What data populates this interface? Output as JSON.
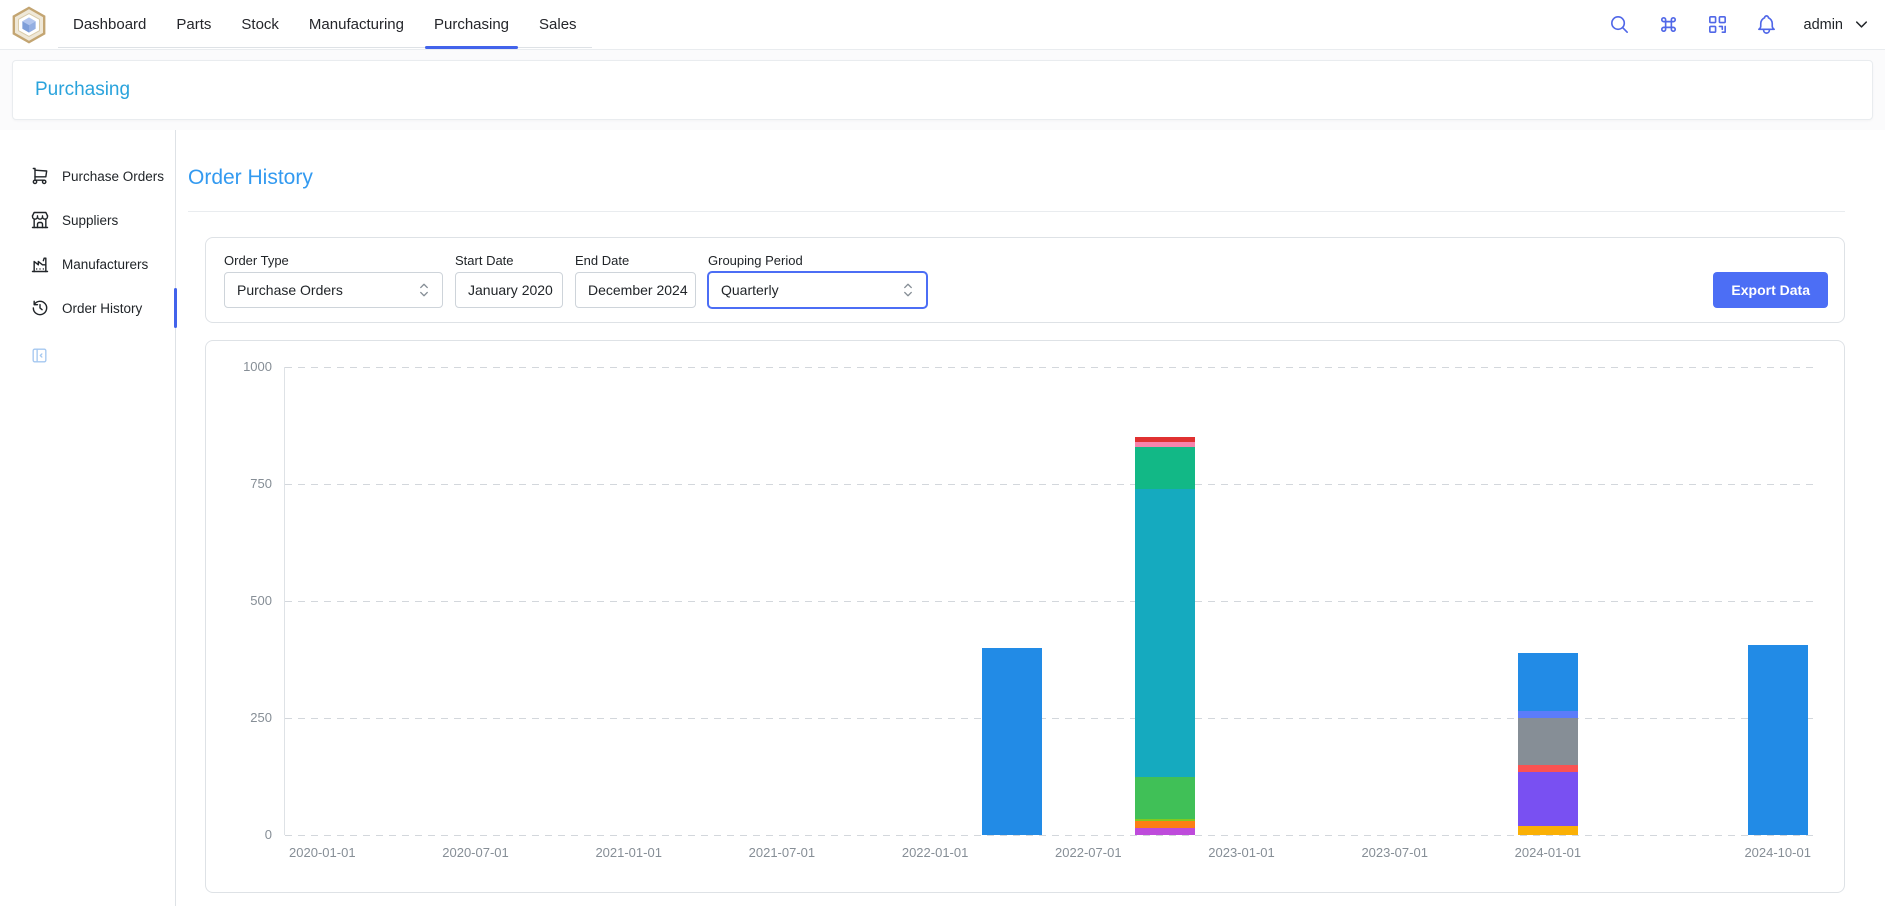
{
  "header": {
    "tabs": [
      {
        "label": "Dashboard",
        "active": false
      },
      {
        "label": "Parts",
        "active": false
      },
      {
        "label": "Stock",
        "active": false
      },
      {
        "label": "Manufacturing",
        "active": false
      },
      {
        "label": "Purchasing",
        "active": true
      },
      {
        "label": "Sales",
        "active": false
      }
    ],
    "icons": [
      {
        "name": "search-icon",
        "glyph": "search"
      },
      {
        "name": "command-icon",
        "glyph": "command"
      },
      {
        "name": "qr-scan-icon",
        "glyph": "qr"
      },
      {
        "name": "bell-icon",
        "glyph": "bell"
      }
    ],
    "user": {
      "name": "admin"
    }
  },
  "breadcrumb": {
    "title": "Purchasing"
  },
  "sidebar": {
    "items": [
      {
        "label": "Purchase Orders",
        "icon": "shopping-cart-icon",
        "glyph": "cart",
        "active": false
      },
      {
        "label": "Suppliers",
        "icon": "store-icon",
        "glyph": "store",
        "active": false
      },
      {
        "label": "Manufacturers",
        "icon": "factory-icon",
        "glyph": "factory",
        "active": false
      },
      {
        "label": "Order History",
        "icon": "history-icon",
        "glyph": "history",
        "active": true
      }
    ]
  },
  "main": {
    "heading": "Order History",
    "filters": [
      {
        "label": "Order Type",
        "value": "Purchase Orders",
        "type": "select",
        "focused": false
      },
      {
        "label": "Start Date",
        "value": "January 2020",
        "type": "input",
        "focused": false
      },
      {
        "label": "End Date",
        "value": "December 2024",
        "type": "input",
        "focused": false
      },
      {
        "label": "Grouping Period",
        "value": "Quarterly",
        "type": "select",
        "focused": true
      }
    ],
    "export_button": "Export Data"
  },
  "colors": {
    "accent": "#4c6ef5",
    "tab_underline": "#4263eb",
    "breadcrumb_title": "#2aa3dc",
    "heading": "#339af0",
    "export_button_bg": "#4c6ef5",
    "sidebar_active": "#4263eb",
    "focus_border": "#4c6ef5",
    "header_icon": "#5067e8",
    "collapse_icon": "#a5c8f0",
    "border": "#dee2e6",
    "border_light": "#e9ecef",
    "text": "#212529",
    "axis_label": "#868e96",
    "gridline": "#d3d7dc"
  },
  "chart_data": {
    "type": "bar",
    "stacked": true,
    "title": "",
    "xlabel": "",
    "ylabel": "",
    "ylim": [
      0,
      1000
    ],
    "y_ticks": [
      0,
      250,
      500,
      750,
      1000
    ],
    "grid": "dashed-horizontal",
    "legend": false,
    "num_quarters": 20,
    "x_start": "2020-01-01",
    "x_end": "2024-10-01",
    "x_ticks": [
      {
        "index": 0,
        "label": "2020-01-01"
      },
      {
        "index": 2,
        "label": "2020-07-01"
      },
      {
        "index": 4,
        "label": "2021-01-01"
      },
      {
        "index": 6,
        "label": "2021-07-01"
      },
      {
        "index": 8,
        "label": "2022-01-01"
      },
      {
        "index": 10,
        "label": "2022-07-01"
      },
      {
        "index": 12,
        "label": "2023-01-01"
      },
      {
        "index": 14,
        "label": "2023-07-01"
      },
      {
        "index": 16,
        "label": "2024-01-01"
      },
      {
        "index": 19,
        "label": "2024-10-01"
      }
    ],
    "palette": {
      "blue": "#228be6",
      "teal": "#12b886",
      "cyan": "#15aabf",
      "green": "#40c057",
      "lime": "#82c91e",
      "orange": "#fd7e14",
      "grape": "#be4bdb",
      "violet": "#7950f2",
      "gray": "#868e96",
      "red": "#fa5252",
      "indigo": "#5c7cfa",
      "pink": "#f783ac",
      "crimson": "#e03131",
      "yellow": "#fab005"
    },
    "bars": [
      {
        "date": "2022-04-01",
        "quarter_index": 9,
        "total": 400,
        "segments": [
          {
            "color": "blue",
            "value": 400
          }
        ]
      },
      {
        "date": "2022-10-01",
        "quarter_index": 11,
        "total": 850,
        "segments": [
          {
            "color": "grape",
            "value": 15
          },
          {
            "color": "orange",
            "value": 15
          },
          {
            "color": "lime",
            "value": 5
          },
          {
            "color": "green",
            "value": 90
          },
          {
            "color": "cyan",
            "value": 615
          },
          {
            "color": "teal",
            "value": 90
          },
          {
            "color": "pink",
            "value": 10
          },
          {
            "color": "crimson",
            "value": 10
          }
        ]
      },
      {
        "date": "2024-01-01",
        "quarter_index": 16,
        "total": 390,
        "segments": [
          {
            "color": "yellow",
            "value": 20
          },
          {
            "color": "violet",
            "value": 115
          },
          {
            "color": "red",
            "value": 15
          },
          {
            "color": "gray",
            "value": 100
          },
          {
            "color": "indigo",
            "value": 15
          },
          {
            "color": "blue",
            "value": 125
          }
        ]
      },
      {
        "date": "2024-10-01",
        "quarter_index": 19,
        "total": 405,
        "segments": [
          {
            "color": "blue",
            "value": 405
          }
        ]
      }
    ]
  }
}
